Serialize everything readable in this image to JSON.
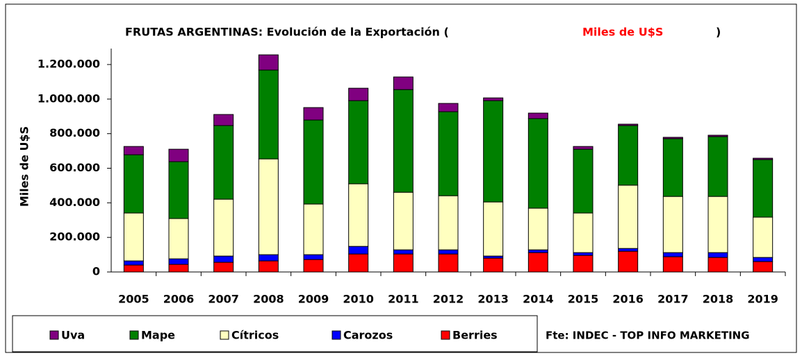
{
  "chart_data": {
    "type": "bar",
    "stacked": true,
    "title": "FRUTAS ARGENTINAS: Evolución de la Exportación (",
    "title_unit": "Miles de U$S",
    "title_close": ")",
    "y_label": "Miles de U$S",
    "source": "Fte: INDEC - TOP INFO MARKETING",
    "categories": [
      "2005",
      "2006",
      "2007",
      "2008",
      "2009",
      "2010",
      "2011",
      "2012",
      "2013",
      "2014",
      "2015",
      "2016",
      "2017",
      "2018",
      "2019"
    ],
    "series": [
      {
        "name": "Uva",
        "color": "#800080",
        "values": [
          48000,
          72000,
          64000,
          88000,
          72000,
          72000,
          73000,
          48000,
          16000,
          32000,
          16000,
          8000,
          8000,
          8000,
          8000
        ]
      },
      {
        "name": "Mape",
        "color": "#008000",
        "values": [
          337000,
          329000,
          426000,
          514000,
          486000,
          481000,
          594000,
          486000,
          586000,
          518000,
          369000,
          345000,
          334000,
          346000,
          333000
        ]
      },
      {
        "name": "Cítricos",
        "color": "#ffffc0",
        "values": [
          277000,
          233000,
          329000,
          554000,
          293000,
          362000,
          333000,
          313000,
          313000,
          241000,
          229000,
          366000,
          325000,
          325000,
          233000
        ]
      },
      {
        "name": "Carozos",
        "color": "#0000ff",
        "values": [
          24000,
          32000,
          36000,
          36000,
          28000,
          44000,
          24000,
          24000,
          12000,
          16000,
          16000,
          16000,
          24000,
          28000,
          24000
        ]
      },
      {
        "name": "Berries",
        "color": "#ff0000",
        "values": [
          40000,
          44000,
          56000,
          64000,
          72000,
          104000,
          104000,
          104000,
          80000,
          112000,
          96000,
          120000,
          88000,
          84000,
          60000
        ]
      }
    ],
    "ylim": [
      0,
      1200000
    ],
    "yticks": [
      0,
      {
        "value": 200000,
        "label": "200.000"
      },
      {
        "value": 400000,
        "label": "400.000"
      },
      {
        "value": 600000,
        "label": "600.000"
      },
      {
        "value": 800000,
        "label": "800.000"
      },
      {
        "value": 1000000,
        "label": "1.000.000"
      },
      {
        "value": 1200000,
        "label": "1.200.000"
      }
    ],
    "grid": false
  }
}
